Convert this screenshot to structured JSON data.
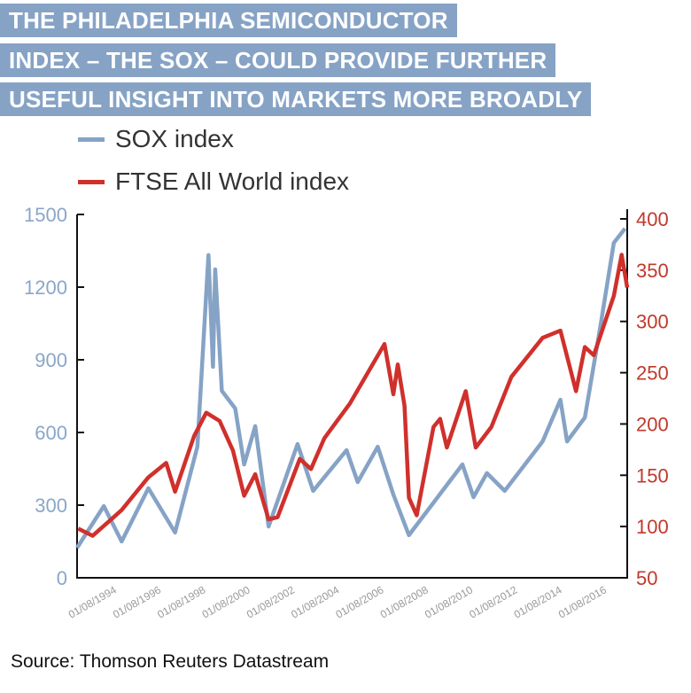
{
  "title_lines": [
    "THE PHILADELPHIA SEMICONDUCTOR",
    "INDEX – THE SOX – COULD PROVIDE FURTHER",
    "USEFUL INSIGHT INTO MARKETS MORE BROADLY"
  ],
  "source": "Source: Thomson Reuters Datastream",
  "colors": {
    "sox": "#86a3c6",
    "ftse": "#d0302c",
    "title_bg": "#86a3c6",
    "left_axis": "#8aa6c8",
    "right_axis": "#c0392b"
  },
  "chart_data": {
    "type": "line",
    "title": "THE PHILADELPHIA SEMICONDUCTOR INDEX – THE SOX – COULD PROVIDE FURTHER USEFUL INSIGHT INTO MARKETS MORE BROADLY",
    "legend": [
      "SOX index",
      "FTSE All World index"
    ],
    "legend_position": "top-left",
    "x_domain_years": [
      1994.0,
      2018.7
    ],
    "x_tick_labels": [
      "01/08/1994",
      "01/08/1996",
      "01/08/1998",
      "01/08/2000",
      "01/08/2002",
      "01/08/2004",
      "01/08/2006",
      "01/08/2008",
      "01/08/2010",
      "01/08/2012",
      "01/08/2014",
      "01/08/2016"
    ],
    "y_left": {
      "range": [
        0,
        1500
      ],
      "ticks": [
        0,
        300,
        600,
        900,
        1200,
        1500
      ],
      "series": "SOX index"
    },
    "y_right": {
      "range": [
        50,
        400
      ],
      "ticks": [
        50,
        100,
        150,
        200,
        250,
        300,
        350,
        400
      ],
      "series": "FTSE All World index"
    },
    "grid": false,
    "series": [
      {
        "name": "SOX index",
        "axis": "left",
        "points": [
          [
            1994.0,
            124
          ],
          [
            1995.2,
            296
          ],
          [
            1996.0,
            150
          ],
          [
            1997.2,
            370
          ],
          [
            1998.4,
            187
          ],
          [
            1999.4,
            541
          ],
          [
            1999.9,
            1332
          ],
          [
            2000.1,
            871
          ],
          [
            2000.2,
            1273
          ],
          [
            2000.5,
            772
          ],
          [
            2001.1,
            699
          ],
          [
            2001.5,
            468
          ],
          [
            2002.0,
            626
          ],
          [
            2002.6,
            212
          ],
          [
            2003.9,
            552
          ],
          [
            2004.6,
            359
          ],
          [
            2006.1,
            527
          ],
          [
            2006.6,
            395
          ],
          [
            2007.5,
            541
          ],
          [
            2008.2,
            344
          ],
          [
            2008.9,
            176
          ],
          [
            2011.3,
            468
          ],
          [
            2011.8,
            333
          ],
          [
            2012.4,
            432
          ],
          [
            2013.2,
            359
          ],
          [
            2014.9,
            563
          ],
          [
            2015.7,
            735
          ],
          [
            2016.0,
            563
          ],
          [
            2016.8,
            662
          ],
          [
            2017.5,
            1040
          ],
          [
            2018.1,
            1383
          ],
          [
            2018.6,
            1442
          ]
        ]
      },
      {
        "name": "FTSE All World index",
        "axis": "right",
        "points": [
          [
            1994.05,
            98
          ],
          [
            1994.7,
            91
          ],
          [
            1996.0,
            116
          ],
          [
            1997.2,
            148
          ],
          [
            1998.0,
            162
          ],
          [
            1998.4,
            134
          ],
          [
            1999.25,
            188
          ],
          [
            1999.8,
            211
          ],
          [
            2000.4,
            203
          ],
          [
            2001.0,
            174
          ],
          [
            2001.5,
            130
          ],
          [
            2002.0,
            151
          ],
          [
            2002.6,
            107
          ],
          [
            2003.0,
            109
          ],
          [
            2004.0,
            166
          ],
          [
            2004.5,
            156
          ],
          [
            2005.1,
            186
          ],
          [
            2006.25,
            220
          ],
          [
            2007.8,
            278
          ],
          [
            2008.2,
            229
          ],
          [
            2008.4,
            258
          ],
          [
            2008.7,
            218
          ],
          [
            2008.9,
            128
          ],
          [
            2009.25,
            111
          ],
          [
            2010.0,
            197
          ],
          [
            2010.3,
            205
          ],
          [
            2010.6,
            177
          ],
          [
            2011.45,
            232
          ],
          [
            2011.9,
            177
          ],
          [
            2012.6,
            197
          ],
          [
            2013.5,
            246
          ],
          [
            2014.9,
            284
          ],
          [
            2015.7,
            291
          ],
          [
            2016.4,
            232
          ],
          [
            2016.8,
            275
          ],
          [
            2017.2,
            267
          ],
          [
            2018.1,
            325
          ],
          [
            2018.45,
            365
          ],
          [
            2018.7,
            333
          ]
        ]
      }
    ]
  }
}
